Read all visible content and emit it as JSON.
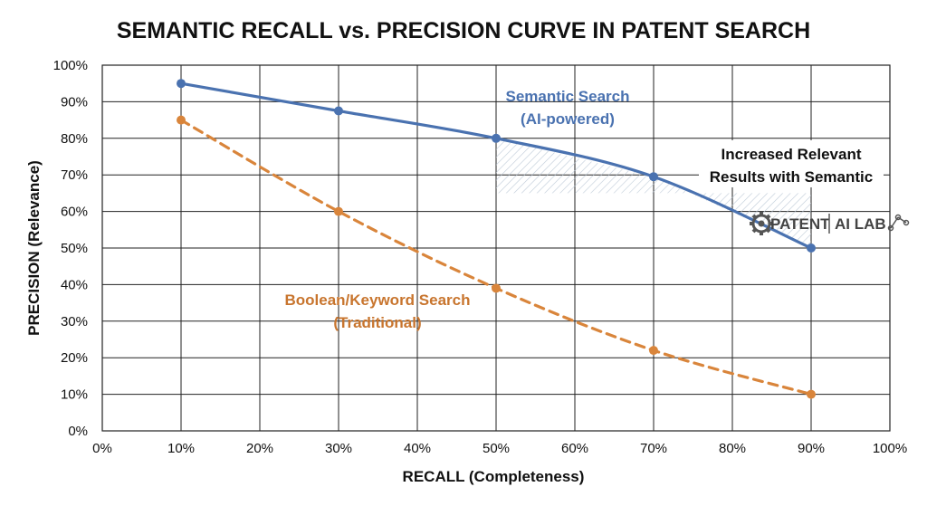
{
  "chart_data": {
    "type": "line",
    "title": "SEMANTIC RECALL vs. PRECISION CURVE IN PATENT SEARCH",
    "xlabel": "RECALL (Completeness)",
    "ylabel": "PRECISION (Relevance)",
    "xlim": [
      0,
      100
    ],
    "ylim": [
      0,
      100
    ],
    "x_ticks": [
      "0%",
      "10%",
      "20%",
      "30%",
      "40%",
      "50%",
      "60%",
      "70%",
      "80%",
      "90%",
      "100%"
    ],
    "y_ticks": [
      "0%",
      "10%",
      "20%",
      "30%",
      "40%",
      "50%",
      "60%",
      "70%",
      "80%",
      "90%",
      "100%"
    ],
    "grid": true,
    "series": [
      {
        "label_lines": [
          "Semantic Search",
          "(AI-powered)"
        ],
        "color": "#4a72b0",
        "style": "solid",
        "x": [
          10,
          30,
          50,
          70,
          90
        ],
        "y": [
          95,
          87.5,
          80,
          69.5,
          50
        ]
      },
      {
        "label_lines": [
          "Boolean/Keyword Search",
          "(Traditional)"
        ],
        "color": "#d9853b",
        "style": "dashed",
        "x": [
          10,
          30,
          50,
          70,
          90
        ],
        "y": [
          85,
          60,
          39,
          22,
          10
        ]
      }
    ],
    "annotation": {
      "lines": [
        "Increased Relevant",
        "Results with Semantic"
      ],
      "shaded_region_x": [
        50,
        90
      ]
    }
  },
  "logo": {
    "left": "PATENT",
    "right": "AI LAB"
  }
}
